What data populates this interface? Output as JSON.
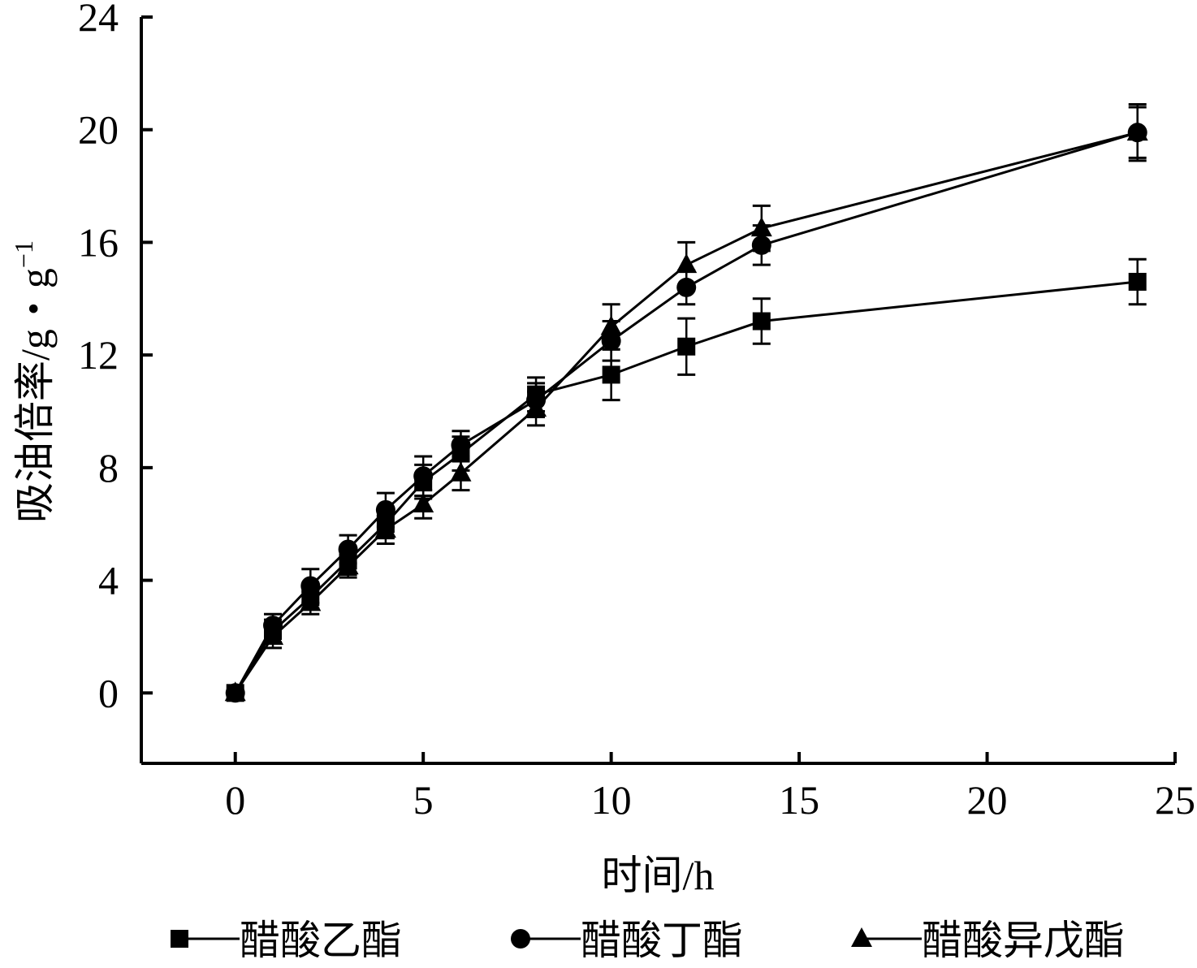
{
  "chart_data": {
    "type": "line",
    "xlabel": "时间/h",
    "ylabel_main": "吸油倍率/g・g",
    "ylabel_sup": "−1",
    "xlim": [
      -2.5,
      25
    ],
    "ylim": [
      -2.5,
      24
    ],
    "x_ticks": [
      0,
      5,
      10,
      15,
      20,
      25
    ],
    "y_ticks": [
      0,
      4,
      8,
      12,
      16,
      20,
      24
    ],
    "grid": false,
    "legend_position": "bottom",
    "series": [
      {
        "name": "醋酸乙酯",
        "marker": "square",
        "x": [
          0,
          1,
          2,
          3,
          4,
          5,
          6,
          8,
          10,
          12,
          14,
          24
        ],
        "y": [
          0,
          2.2,
          3.4,
          4.7,
          6.0,
          7.5,
          8.5,
          10.6,
          11.3,
          12.3,
          13.2,
          14.6
        ],
        "err": [
          0.2,
          0.4,
          0.4,
          0.5,
          0.5,
          0.6,
          0.6,
          0.6,
          0.9,
          1.0,
          0.8,
          0.8
        ]
      },
      {
        "name": "醋酸丁酯",
        "marker": "circle",
        "x": [
          0,
          1,
          2,
          3,
          4,
          5,
          6,
          8,
          10,
          12,
          14,
          24
        ],
        "y": [
          0,
          2.4,
          3.8,
          5.1,
          6.5,
          7.7,
          8.8,
          10.4,
          12.5,
          14.4,
          15.9,
          19.9
        ],
        "err": [
          0.2,
          0.4,
          0.6,
          0.5,
          0.6,
          0.7,
          0.5,
          0.6,
          0.7,
          0.6,
          0.7,
          1.0
        ]
      },
      {
        "name": "醋酸异戊酯",
        "marker": "triangle",
        "x": [
          0,
          1,
          2,
          3,
          4,
          5,
          6,
          8,
          10,
          12,
          14,
          24
        ],
        "y": [
          0,
          2.0,
          3.2,
          4.5,
          5.8,
          6.7,
          7.8,
          10.1,
          13.0,
          15.2,
          16.5,
          19.9
        ],
        "err": [
          0.2,
          0.4,
          0.4,
          0.4,
          0.5,
          0.5,
          0.6,
          0.6,
          0.8,
          0.8,
          0.8,
          0.9
        ]
      }
    ]
  }
}
